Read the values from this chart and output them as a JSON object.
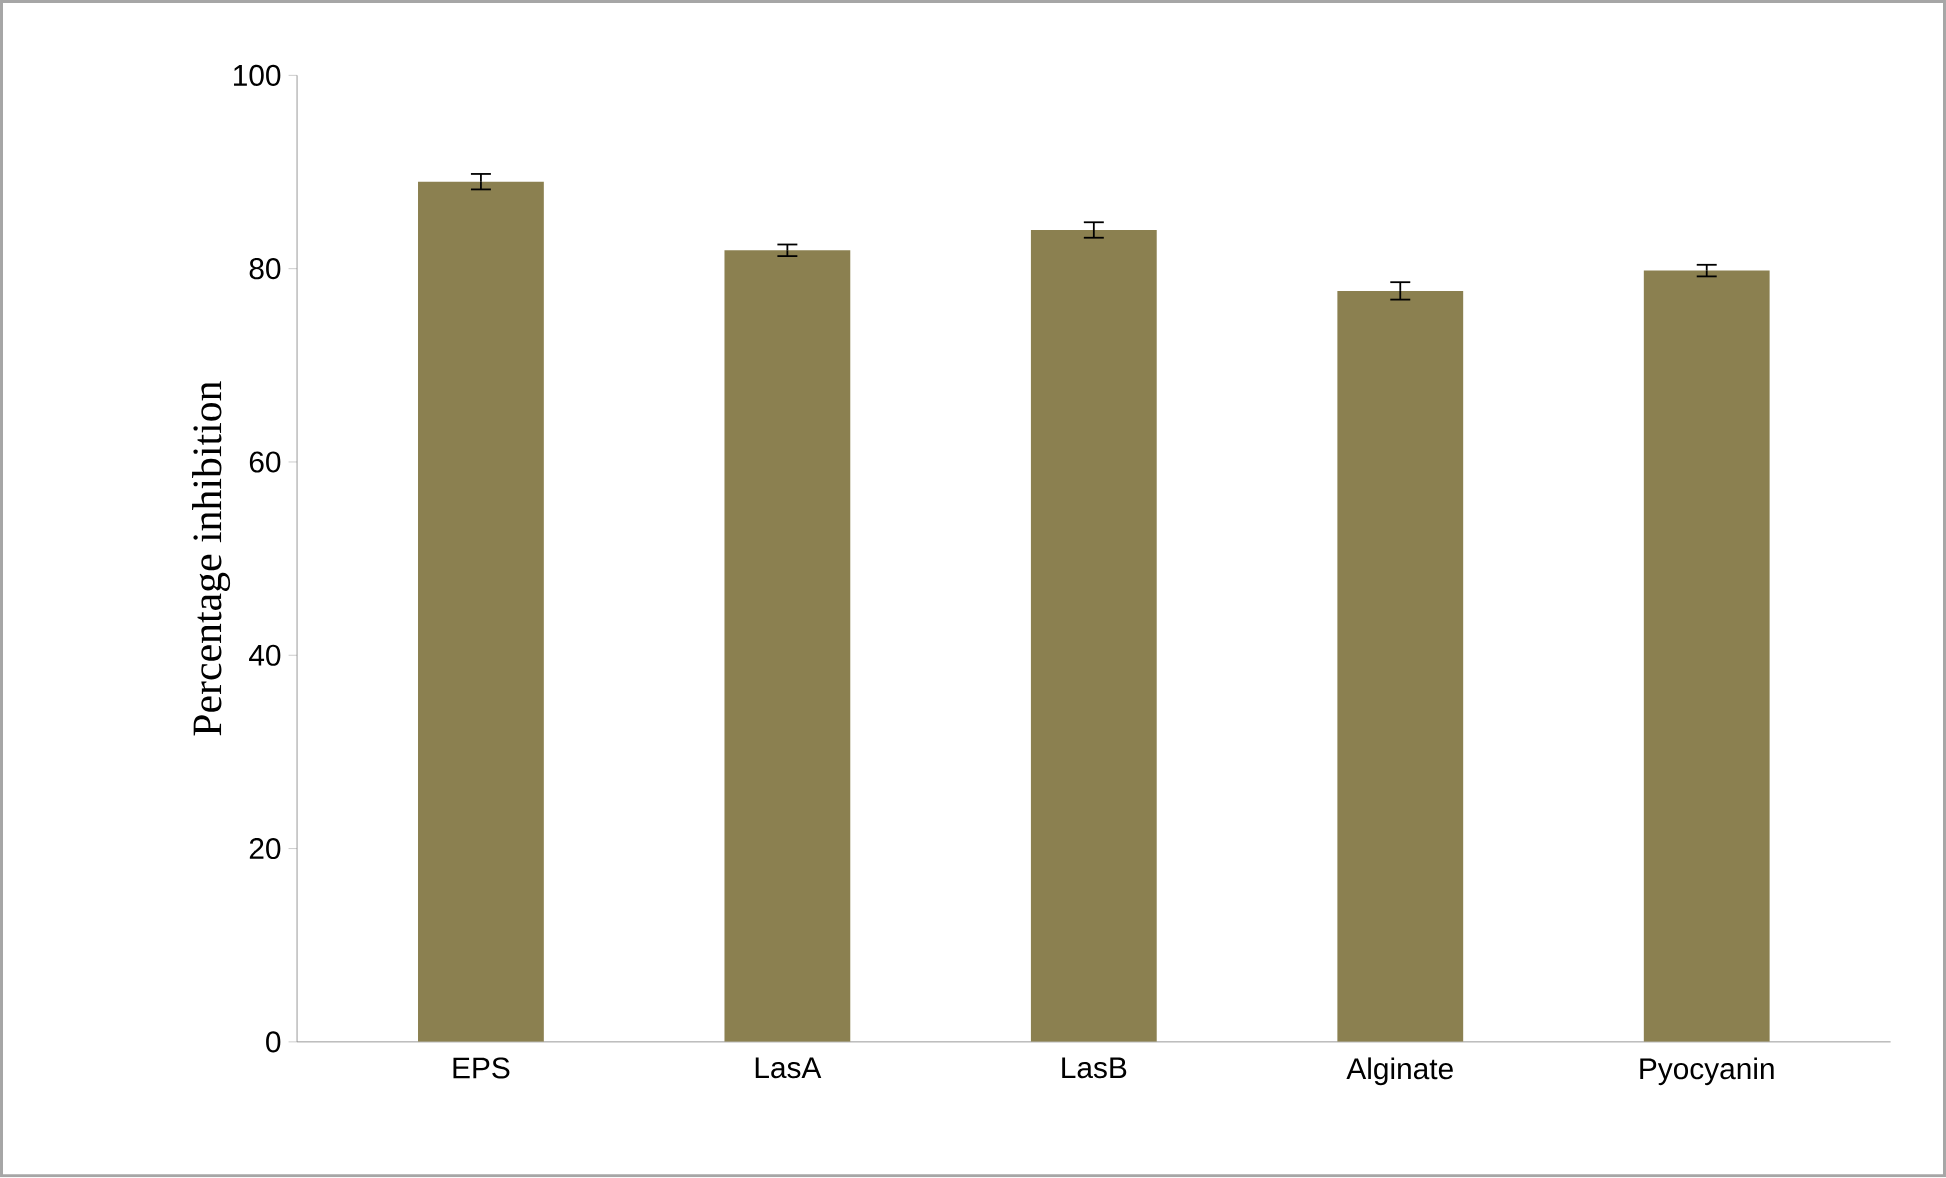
{
  "chart_data": {
    "type": "bar",
    "ylabel": "Percentage  inhibition",
    "categories": [
      "EPS",
      "LasA",
      "LasB",
      "Alginate",
      "Pyocyanin"
    ],
    "values": [
      89.0,
      81.9,
      84.0,
      77.7,
      79.8
    ],
    "errors": [
      0.8,
      0.6,
      0.8,
      0.9,
      0.6
    ],
    "color": "#8b8050",
    "ylim": [
      0,
      100
    ],
    "yticks": [
      0,
      20,
      40,
      60,
      80,
      100
    ]
  }
}
